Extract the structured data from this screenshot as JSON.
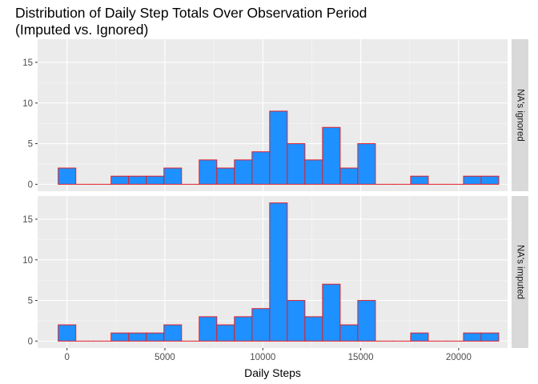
{
  "chart_data": {
    "type": "bar",
    "title_line1": "Distribution of Daily Step Totals Over Observation Period",
    "title_line2": "(Imputed vs. Ignored)",
    "xlabel": "Daily Steps",
    "ylabel": "",
    "xlim": [
      -1500,
      22500
    ],
    "ylim": [
      -0.85,
      17.85
    ],
    "x_ticks": [
      0,
      5000,
      10000,
      15000,
      20000
    ],
    "y_ticks": [
      0,
      5,
      10,
      15
    ],
    "bin_width": 900,
    "bin_centers": [
      0,
      900,
      1800,
      2700,
      3600,
      4500,
      5400,
      6300,
      7200,
      8100,
      9000,
      9900,
      10800,
      11700,
      12600,
      13500,
      14400,
      15300,
      16200,
      17100,
      18000,
      18900,
      19800,
      20700,
      21600
    ],
    "fill_color": "#1e90ff",
    "outline_color": "#e0202a",
    "panel_background": "#ebebeb",
    "strip_background": "#d9d9d9",
    "grid": true,
    "panels": [
      {
        "strip_label": "NA's ignored",
        "counts": [
          2,
          0,
          0,
          1,
          1,
          1,
          2,
          0,
          3,
          2,
          3,
          4,
          9,
          5,
          3,
          7,
          2,
          5,
          0,
          0,
          1,
          0,
          0,
          1,
          1
        ]
      },
      {
        "strip_label": "NA's imputed",
        "counts": [
          2,
          0,
          0,
          1,
          1,
          1,
          2,
          0,
          3,
          2,
          3,
          4,
          17,
          5,
          3,
          7,
          2,
          5,
          0,
          0,
          1,
          0,
          0,
          1,
          1
        ]
      }
    ]
  }
}
